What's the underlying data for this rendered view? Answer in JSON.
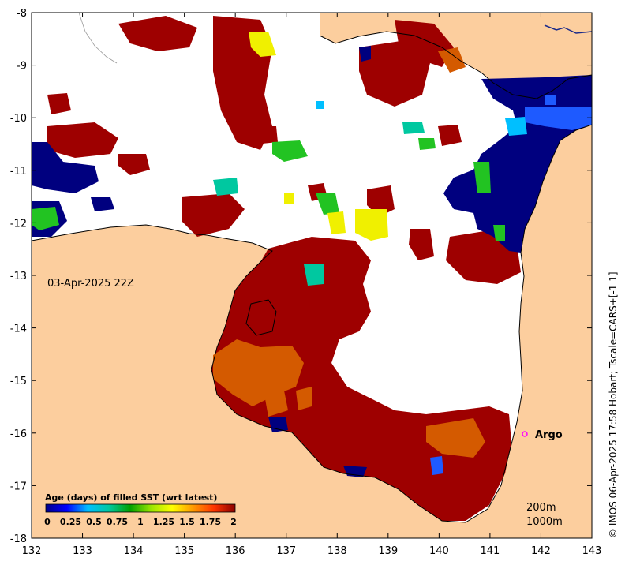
{
  "map": {
    "x_axis": {
      "ticks": [
        "132",
        "133",
        "134",
        "135",
        "136",
        "137",
        "138",
        "139",
        "140",
        "141",
        "142",
        "143"
      ]
    },
    "y_axis": {
      "ticks": [
        "-8",
        "-9",
        "-10",
        "-11",
        "-12",
        "-13",
        "-14",
        "-15",
        "-16",
        "-17",
        "-18"
      ]
    },
    "date_label": "03-Apr-2025 22Z",
    "argo_label": "Argo",
    "credit": "© IMOS 06-Apr-2025 17:58 Hobart; Tscale=CARS+[-1 1]",
    "depth_legend": [
      "200m",
      "1000m"
    ]
  },
  "colorbar": {
    "title": "Age (days) of filled SST (wrt latest)",
    "ticks": [
      "0",
      "0.25",
      "0.5",
      "0.75",
      "1",
      "1.25",
      "1.5",
      "1.75",
      "2"
    ],
    "colors": [
      "#00008b",
      "#0000ff",
      "#00bfff",
      "#00c8a0",
      "#00a000",
      "#9ae600",
      "#ffff00",
      "#ff9900",
      "#ff3300",
      "#8b0000"
    ]
  },
  "colors": {
    "land": "#fcce9e",
    "no_data": "#ffffff",
    "age_2_days": "#9e0000",
    "age_1_75_days": "#d45a00",
    "age_0_days": "#00007f",
    "argo_marker": "#ff00ff"
  }
}
